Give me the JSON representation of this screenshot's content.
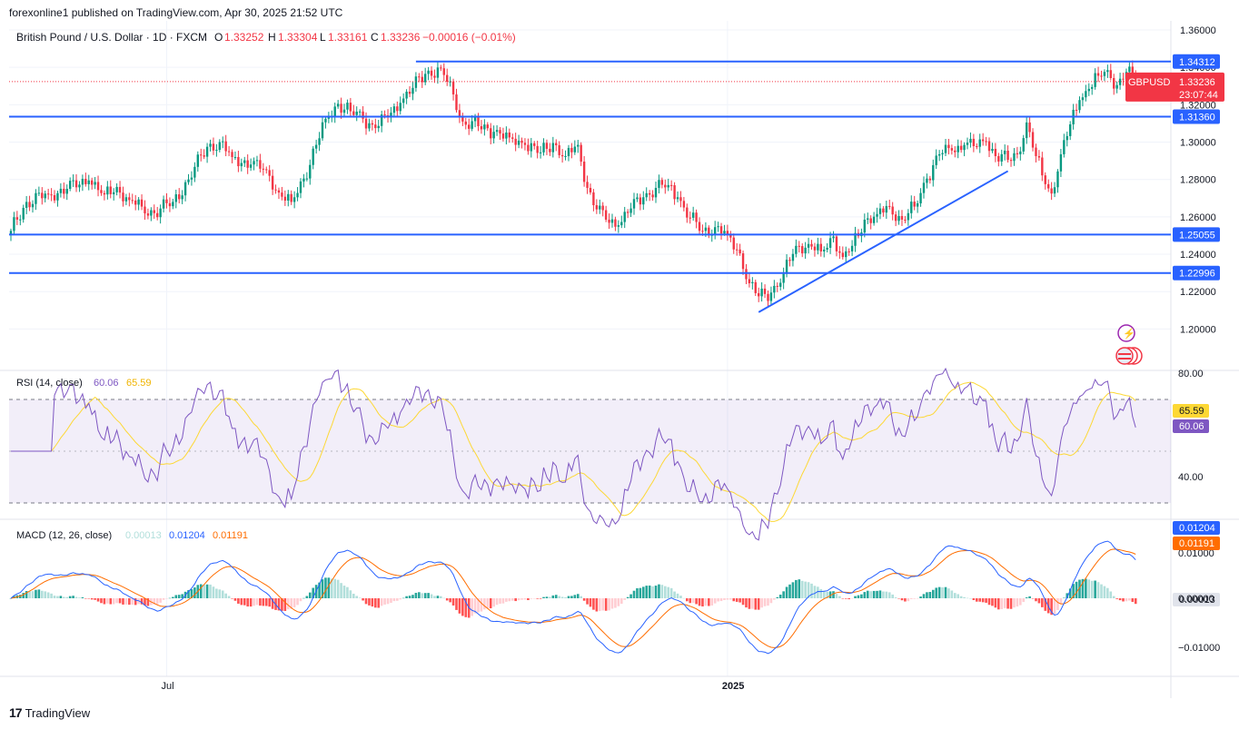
{
  "header": {
    "text": "forexonline1 published on TradingView.com, Apr 30, 2025 21:52 UTC"
  },
  "legend": {
    "symbol": "British Pound / U.S. Dollar · 1D · FXCM",
    "o_label": "O",
    "o": "1.33252",
    "h_label": "H",
    "h": "1.33304",
    "l_label": "L",
    "l": "1.33161",
    "c_label": "C",
    "c": "1.33236",
    "change": "−0.00016 (−0.01%)"
  },
  "price_axis": {
    "ticks": [
      "1.36000",
      "1.34000",
      "1.32000",
      "1.30000",
      "1.28000",
      "1.26000",
      "1.24000",
      "1.22000",
      "1.20000"
    ]
  },
  "levels": [
    {
      "label": "1.34312",
      "value": 1.34312,
      "from_index": 130
    },
    {
      "label": "1.31360",
      "value": 1.3136,
      "from_index": 0
    },
    {
      "label": "1.25055",
      "value": 1.25055,
      "from_index": 0
    },
    {
      "label": "1.22996",
      "value": 1.22996,
      "from_index": 0
    }
  ],
  "last_price": {
    "symbol": "GBPUSD",
    "price": "1.33236",
    "countdown": "23:07:44",
    "value": 1.33236
  },
  "trendlines": [
    {
      "from": {
        "index": 240,
        "price": 1.209
      },
      "to": {
        "index": 320,
        "price": 1.2845
      }
    }
  ],
  "rsi": {
    "title": "RSI (14, close)",
    "value": "60.06",
    "ma_value": "65.59",
    "ticks": [
      "80.00",
      "40.00"
    ],
    "upper_band": 70,
    "lower_band": 30
  },
  "macd": {
    "title": "MACD (12, 26, close)",
    "hist_value": "0.00013",
    "macd_value": "0.01204",
    "signal_value": "0.01191",
    "ticks": [
      "0.01000",
      "0.00000",
      "−0.01000"
    ]
  },
  "time_axis": {
    "labels": [
      {
        "text": "Jul",
        "index": 50
      },
      {
        "text": "2025",
        "index": 230
      }
    ]
  },
  "colors": {
    "up": "#089981",
    "down": "#f23645",
    "level": "#2962ff",
    "rsi": "#7e57c2",
    "rsi_ma": "#fdd835",
    "macd": "#2962ff",
    "signal": "#ff6d00"
  },
  "footer": {
    "brand": "TradingView"
  },
  "chart_data": {
    "type": "candlestick",
    "symbol": "GBPUSD",
    "timeframe": "1D",
    "ylim": [
      1.19,
      1.36
    ],
    "anchors": [
      [
        0,
        1.2525
      ],
      [
        5,
        1.268
      ],
      [
        12,
        1.272
      ],
      [
        18,
        1.275
      ],
      [
        25,
        1.2795
      ],
      [
        30,
        1.272
      ],
      [
        34,
        1.276
      ],
      [
        38,
        1.269
      ],
      [
        42,
        1.2655
      ],
      [
        46,
        1.262
      ],
      [
        52,
        1.268
      ],
      [
        57,
        1.28
      ],
      [
        63,
        1.2975
      ],
      [
        67,
        1.3
      ],
      [
        71,
        1.292
      ],
      [
        77,
        1.288
      ],
      [
        82,
        1.285
      ],
      [
        86,
        1.273
      ],
      [
        90,
        1.268
      ],
      [
        94,
        1.2805
      ],
      [
        98,
        1.2985
      ],
      [
        101,
        1.3125
      ],
      [
        105,
        1.3205
      ],
      [
        109,
        1.3165
      ],
      [
        113,
        1.3125
      ],
      [
        117,
        1.3075
      ],
      [
        121,
        1.3135
      ],
      [
        125,
        1.321
      ],
      [
        129,
        1.329
      ],
      [
        133,
        1.3365
      ],
      [
        138,
        1.3395
      ],
      [
        142,
        1.3255
      ],
      [
        145,
        1.311
      ],
      [
        150,
        1.3085
      ],
      [
        155,
        1.3055
      ],
      [
        160,
        1.3025
      ],
      [
        165,
        1.2985
      ],
      [
        170,
        1.2945
      ],
      [
        174,
        1.2995
      ],
      [
        178,
        1.2925
      ],
      [
        182,
        1.2985
      ],
      [
        185,
        1.2755
      ],
      [
        188,
        1.264
      ],
      [
        191,
        1.2585
      ],
      [
        195,
        1.2555
      ],
      [
        199,
        1.2645
      ],
      [
        203,
        1.2705
      ],
      [
        207,
        1.2755
      ],
      [
        211,
        1.277
      ],
      [
        214,
        1.2705
      ],
      [
        218,
        1.2595
      ],
      [
        222,
        1.2525
      ],
      [
        226,
        1.2545
      ],
      [
        230,
        1.2505
      ],
      [
        234,
        1.2405
      ],
      [
        237,
        1.2245
      ],
      [
        240,
        1.2175
      ],
      [
        244,
        1.2195
      ],
      [
        248,
        1.2295
      ],
      [
        252,
        1.2445
      ],
      [
        256,
        1.2455
      ],
      [
        260,
        1.2415
      ],
      [
        264,
        1.2495
      ],
      [
        267,
        1.2385
      ],
      [
        270,
        1.2445
      ],
      [
        274,
        1.2585
      ],
      [
        278,
        1.2615
      ],
      [
        282,
        1.2655
      ],
      [
        286,
        1.2585
      ],
      [
        290,
        1.2655
      ],
      [
        294,
        1.2805
      ],
      [
        298,
        1.2935
      ],
      [
        302,
        1.2955
      ],
      [
        306,
        1.2985
      ],
      [
        310,
        1.2975
      ],
      [
        313,
        1.3005
      ],
      [
        316,
        1.2925
      ],
      [
        320,
        1.2905
      ],
      [
        323,
        1.2935
      ],
      [
        326,
        1.3105
      ],
      [
        329,
        1.2925
      ],
      [
        332,
        1.2775
      ],
      [
        334,
        1.2725
      ],
      [
        337,
        1.2935
      ],
      [
        340,
        1.3095
      ],
      [
        343,
        1.3225
      ],
      [
        346,
        1.3285
      ],
      [
        349,
        1.3355
      ],
      [
        352,
        1.3385
      ],
      [
        355,
        1.3305
      ],
      [
        357,
        1.3335
      ],
      [
        358,
        1.3375
      ],
      [
        360,
        1.3355
      ],
      [
        361,
        1.33236
      ]
    ]
  }
}
